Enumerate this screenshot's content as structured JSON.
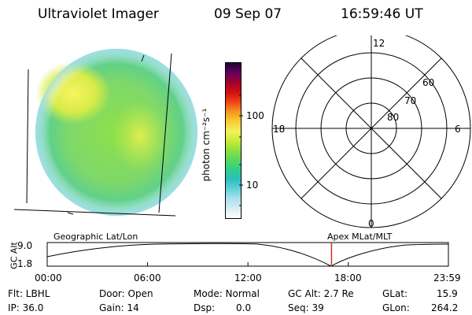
{
  "header": {
    "instrument": "Ultraviolet Imager",
    "date": "09 Sep 07",
    "time": "16:59:46 UT"
  },
  "colorbar": {
    "unit_label": "photon cm⁻²s⁻¹",
    "tick_100": "100",
    "tick_10": "10",
    "colors": [
      "#ffffff",
      "#d8eef5",
      "#a8e0ec",
      "#5fd0d8",
      "#2cc0c0",
      "#2dd08a",
      "#5cd85a",
      "#92e040",
      "#c8ec38",
      "#f4f060",
      "#f8c830",
      "#f89020",
      "#f04018",
      "#d01010",
      "#a00030",
      "#600060",
      "#200030"
    ]
  },
  "polar_plot": {
    "mlt_labels": {
      "top": "12",
      "left": "18",
      "right": "6",
      "bottom": "0"
    },
    "lat_labels": [
      "60",
      "70",
      "80"
    ]
  },
  "timeline": {
    "left_title": "Geographic Lat/Lon",
    "right_title": "Apex MLat/MLT",
    "y_axis_label": "GC Alt",
    "y_tick_top": "9.0",
    "y_tick_bottom": "1.8",
    "x_ticks": [
      "00:00",
      "06:00",
      "12:00",
      "18:00",
      "23:59"
    ],
    "marker_time": "16:59:46",
    "marker_color": "#d03020"
  },
  "info": {
    "filter": "Flt: LBHL",
    "ip": "IP: 36.0",
    "door": "Door: Open",
    "gain": "Gain: 14",
    "mode": "Mode: Normal",
    "dsp": "Dsp:",
    "dsp_value": "0.0",
    "gc_alt": "GC Alt: 2.7 Re",
    "seq": "Seq: 39",
    "glat": "GLat:",
    "glat_value": "15.9",
    "glon": "GLon:",
    "glon_value": "264.2"
  }
}
